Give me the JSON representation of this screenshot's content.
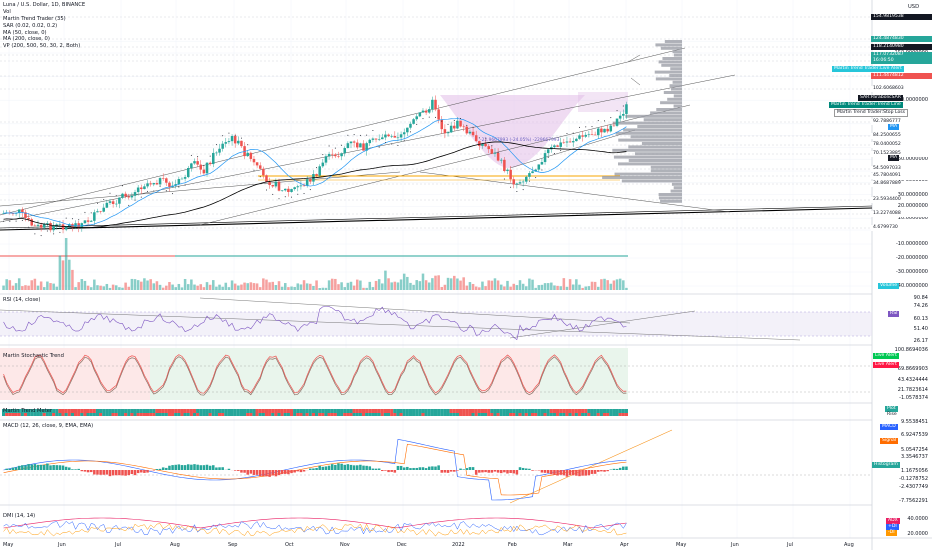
{
  "header": {
    "lines": [
      "Luna / U.S. Dollar, 1D, BINANCE",
      "Vol",
      "Martin Trend Trader (35)",
      "SAR (0.02, 0.02, 0.2)",
      "MA (50, close, 0)",
      "MA (200, close, 0)",
      "VP (200, 500, 50, 30, 2, Both)"
    ],
    "currency": "USD"
  },
  "panes": {
    "rsi_title": "RSI (14, close)",
    "stoch_title": "Martin Stochastic Trend",
    "trend_title": "Martin Trend Meter",
    "macd_title": "MACD (12, 26, close, 9, EMA, EMA)",
    "dmi_title": "DMI (14, 14)"
  },
  "price_scale": {
    "labels": [
      "160.0000000",
      "150.0000000",
      "130.0000000",
      "110.0000000",
      "90.0000000",
      "80.0000000",
      "70.0000000",
      "60.0000000",
      "50.0000000",
      "40.0000000",
      "30.0000000",
      "20.0000000",
      "10.0000000",
      "0.0000000",
      "-10.0000000",
      "-20.0000000",
      "-30.0000000",
      "-40.0000000"
    ],
    "tags": [
      {
        "text": "154.9819538",
        "style": "dark"
      },
      {
        "text": "124.4874830",
        "style": "green"
      },
      {
        "text": "118.2140980",
        "style": "dark"
      },
      {
        "text": "117.0732087",
        "style": "green"
      },
      {
        "text": "16:06:50",
        "style": "green"
      },
      {
        "text": "111.4474812",
        "style": "red"
      },
      {
        "text": "102.6068603",
        "style": "light"
      },
      {
        "text": "92.7886777",
        "style": "light"
      },
      {
        "text": "84.2500655",
        "style": "light"
      },
      {
        "text": "78.0400052",
        "style": "light"
      },
      {
        "text": "70.1523885",
        "style": "light"
      },
      {
        "text": "54.5097033",
        "style": "light"
      },
      {
        "text": "45.7804091",
        "style": "light"
      },
      {
        "text": "34.8687889",
        "style": "light"
      },
      {
        "text": "23.5934400",
        "style": "light"
      },
      {
        "text": "13.2274088",
        "style": "light"
      },
      {
        "text": "4.6799730",
        "style": "light"
      }
    ],
    "left_tags": [
      {
        "text": "Martin Trend Trader:Live Alert",
        "style": "cyan"
      },
      {
        "text": "SAR:ParabolicSAR",
        "style": "black"
      },
      {
        "text": "Martin Trend Trader:Trend Line",
        "style": "teal"
      },
      {
        "text": "Martin Trend Trader:Stop Loss",
        "style": "white"
      },
      {
        "text": "MA",
        "style": "blue"
      },
      {
        "text": "MA",
        "style": "black"
      },
      {
        "text": "Volume",
        "style": "cyan"
      }
    ]
  },
  "rsi_scale": {
    "labels": [
      "90.84",
      "74.26",
      "60.13",
      "51.40",
      "26.17"
    ],
    "tag": "RSI"
  },
  "stoch_scale": {
    "labels": [
      "100.8694036",
      "69.8669903",
      "43.4324444",
      "21.7823614",
      "-1.0578374"
    ],
    "tags": [
      "Live Alert",
      "Live Alert"
    ]
  },
  "trend_scale": {
    "tags": [
      "Plot",
      "Rise"
    ]
  },
  "macd_scale": {
    "labels": [
      "9.5538451",
      "6.9247539",
      "5.0547254",
      "3.3546737",
      "1.1675056",
      "-0.1278752",
      "-2.4307749",
      "-7.7562291"
    ],
    "tags": [
      "MACD",
      "Signal",
      "Histogram"
    ]
  },
  "dmi_scale": {
    "labels": [
      "40.0000",
      "20.0000"
    ],
    "tags": [
      "ADX",
      "+DI",
      "-DI"
    ]
  },
  "x_axis": [
    "May",
    "Jun",
    "Jul",
    "Aug",
    "Sep",
    "Oct",
    "Nov",
    "Dec",
    "2022",
    "Feb",
    "Mar",
    "Apr",
    "May",
    "Jun",
    "Jul",
    "Aug"
  ],
  "annotations": {
    "fib": "-22.9667993 (-24.05%) -229667993"
  },
  "colors": {
    "up": "#26a69a",
    "down": "#ef5350",
    "ma50": "#2196f3",
    "ma200": "#000000",
    "profile": "#9598a1",
    "fill": "#e1bee7"
  },
  "chart_data": {
    "type": "candlestick",
    "title": "Luna / U.S. Dollar, 1D, BINANCE",
    "x_range": [
      "2021-05",
      "2022-08"
    ],
    "ylim": [
      -40,
      160
    ],
    "series": [
      {
        "name": "Luna / U.S. Dollar",
        "last": 117.0732087,
        "high": 118.214098
      },
      {
        "name": "MA (50, close, 0)"
      },
      {
        "name": "MA (200, close, 0)"
      },
      {
        "name": "SAR (0.02, 0.02, 0.2)"
      }
    ],
    "profile_levels": [
      102.6068603,
      92.7886777,
      84.2500655,
      78.0400052,
      70.1523885,
      54.5097033,
      45.7804091,
      34.8687889,
      23.59344,
      13.2274088,
      4.679973
    ]
  }
}
